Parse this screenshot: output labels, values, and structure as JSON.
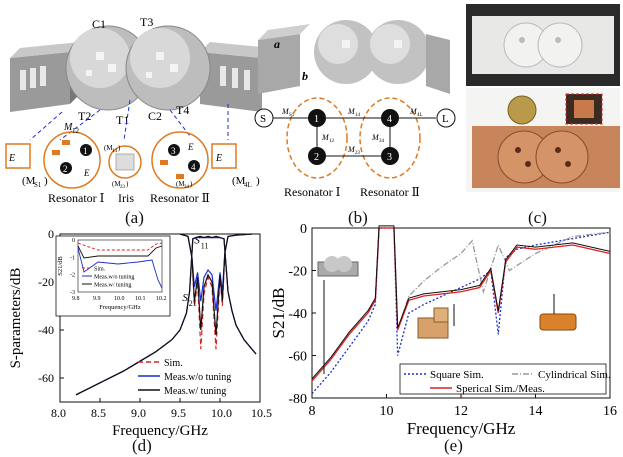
{
  "panel_a": {
    "labels": {
      "c1": "C1",
      "c2": "C2",
      "t1": "T1",
      "t2": "T2",
      "t3": "T3",
      "t4": "T4"
    },
    "m_s1": "(M",
    "m_s1_sub": "S1",
    "m_s1_close": ")",
    "m_12": "M",
    "m_12_sub": "12",
    "m_23": "(M",
    "m_23_sub": "23",
    "m_23_close": ")",
    "m_14": "(M",
    "m_14_sub": "14",
    "m_14_close": ")",
    "m_34": "(M",
    "m_34_sub": "34",
    "m_34_close": ")",
    "m_4l": "(M",
    "m_4l_sub": "4L",
    "m_4l_close": ")",
    "e": "E",
    "n1": "1",
    "n2": "2",
    "n3": "3",
    "n4": "4",
    "resonator1": "Resonator Ⅰ",
    "iris": "Iris",
    "resonator2": "Resonator Ⅱ",
    "caption": "(a)"
  },
  "panel_b": {
    "a": "a",
    "b": "b",
    "S": "S",
    "L": "L",
    "n1": "1",
    "n2": "2",
    "n3": "3",
    "n4": "4",
    "ms1": "M",
    "ms1_sub": "S1",
    "m14": "M",
    "m14_sub": "14",
    "m4l": "M",
    "m4l_sub": "4L",
    "m12": "M",
    "m12_sub": "12",
    "m34": "M",
    "m34_sub": "34",
    "m23": "M",
    "m23_sub": "23",
    "resonator1": "Resonator Ⅰ",
    "resonator2": "Resonator Ⅱ",
    "caption": "(b)"
  },
  "panel_c": {
    "caption": "(c)"
  },
  "panel_d": {
    "caption": "(d)",
    "colors": {
      "sim": "#e02020",
      "meas_wo": "#1a2fd0",
      "meas_w": "#111111"
    },
    "chart_data": {
      "type": "line",
      "xlabel": "Frequency/GHz",
      "ylabel": "S-parameters/dB",
      "xlim": [
        8.0,
        10.5
      ],
      "ylim": [
        -70,
        0
      ],
      "xticks": [
        "8.0",
        "8.5",
        "9.0",
        "9.5",
        "10.0",
        "10.5"
      ],
      "yticks": [
        "0",
        "-20",
        "-40",
        "-60"
      ],
      "annotations": [
        "S",
        "11",
        "S",
        "21"
      ],
      "legend": [
        "Sim.",
        "Meas.w/o tuning",
        "Meas.w/ tuning"
      ],
      "series": [
        {
          "name": "Sim.",
          "style": "dashed",
          "x": [
            8.2,
            8.5,
            8.8,
            9.0,
            9.2,
            9.4,
            9.5,
            9.58,
            9.62,
            9.66,
            9.7,
            9.75,
            9.8,
            9.85,
            9.9,
            9.95,
            10.0,
            10.05,
            10.1,
            10.15,
            10.2,
            10.3,
            10.45
          ],
          "y": [
            -67,
            -62,
            -57,
            -53,
            -49,
            -44,
            -40,
            -33,
            -24,
            -2,
            -1.5,
            -1,
            -1.5,
            -1,
            -1.5,
            -1,
            -1.5,
            -2,
            -24,
            -32,
            -38,
            -44,
            -50
          ]
        },
        {
          "name": "Meas.w/o tuning",
          "style": "solid",
          "x": [
            8.2,
            8.5,
            8.8,
            9.0,
            9.2,
            9.4,
            9.5,
            9.58,
            9.62,
            9.66,
            9.7,
            9.75,
            9.8,
            9.85,
            9.9,
            9.95,
            10.0,
            10.05,
            10.1,
            10.15,
            10.2,
            10.3,
            10.45
          ],
          "y": [
            -67,
            -62,
            -57,
            -53,
            -49,
            -44,
            -40,
            -33,
            -24,
            -2,
            -1.5,
            -1.5,
            -1.5,
            -1.5,
            -1.5,
            -1.5,
            -1.5,
            -2,
            -24,
            -32,
            -38,
            -44,
            -50
          ]
        },
        {
          "name": "Meas.w/ tuning",
          "style": "solid",
          "x": [
            8.2,
            8.5,
            8.8,
            9.0,
            9.2,
            9.4,
            9.5,
            9.58,
            9.62,
            9.66,
            9.7,
            9.75,
            9.8,
            9.85,
            9.9,
            9.95,
            10.0,
            10.05,
            10.1,
            10.15,
            10.2,
            10.3,
            10.45
          ],
          "y": [
            -67,
            -62,
            -57,
            -53,
            -49,
            -44,
            -40,
            -33,
            -24,
            -2,
            -1.5,
            -1,
            -1.5,
            -1,
            -1.5,
            -1,
            -1.5,
            -2,
            -24,
            -32,
            -38,
            -44,
            -50
          ]
        },
        {
          "name": "S11 Sim.",
          "style": "dashed",
          "x": [
            9.5,
            9.6,
            9.65,
            9.68,
            9.72,
            9.76,
            9.8,
            9.85,
            9.9,
            9.95,
            10.0,
            10.03,
            10.06,
            10.1,
            10.2,
            10.4
          ],
          "y": [
            0,
            -1,
            -10,
            -30,
            -20,
            -48,
            -25,
            -18,
            -22,
            -48,
            -18,
            -30,
            -8,
            -1,
            -0.5,
            0
          ]
        },
        {
          "name": "S11 Meas.w/o tuning",
          "style": "solid",
          "x": [
            9.5,
            9.6,
            9.65,
            9.68,
            9.72,
            9.76,
            9.8,
            9.85,
            9.9,
            9.95,
            10.0,
            10.03,
            10.06,
            10.1,
            10.2,
            10.4
          ],
          "y": [
            0,
            -1,
            -10,
            -22,
            -16,
            -28,
            -18,
            -15,
            -17,
            -32,
            -16,
            -24,
            -8,
            -1,
            -0.5,
            0
          ]
        },
        {
          "name": "S11 Meas.w/ tuning",
          "style": "solid",
          "x": [
            9.5,
            9.6,
            9.65,
            9.68,
            9.72,
            9.76,
            9.8,
            9.85,
            9.9,
            9.95,
            10.0,
            10.03,
            10.06,
            10.1,
            10.2,
            10.4
          ],
          "y": [
            0,
            -1,
            -10,
            -28,
            -18,
            -40,
            -22,
            -17,
            -20,
            -42,
            -17,
            -28,
            -8,
            -1,
            -0.5,
            0
          ]
        }
      ],
      "inset": {
        "xlabel": "Frequency/GHz",
        "ylabel": "S21/dB",
        "xticks": [
          "9.8",
          "9.9",
          "10.0",
          "10.1",
          "10.2"
        ],
        "yticks": [
          "0",
          "-1",
          "-2",
          "-3"
        ],
        "legend": [
          "Sim.",
          "Meas.w/o tuning",
          "Meas.w/ tuning"
        ]
      }
    }
  },
  "panel_e": {
    "caption": "(e)",
    "colors": {
      "square": "#1a2fd0",
      "cyl": "#999999",
      "sph_sim": "#e02020",
      "sph_meas": "#111111"
    },
    "chart_data": {
      "type": "line",
      "xlabel": "Frequency/GHz",
      "ylabel": "S21/dB",
      "xlim": [
        8,
        16
      ],
      "ylim": [
        -80,
        0
      ],
      "xticks": [
        "8",
        "10",
        "12",
        "14",
        "16"
      ],
      "yticks": [
        "0",
        "-20",
        "-40",
        "-60",
        "-80"
      ],
      "legend": [
        "Square Sim.",
        "Cylindrical Sim.",
        "Sperical Sim./Meas."
      ],
      "series": [
        {
          "name": "Square Sim.",
          "style": "dotted",
          "x": [
            8,
            8.5,
            9,
            9.5,
            9.7,
            9.8,
            10,
            10.2,
            10.3,
            10.6,
            11,
            11.5,
            12,
            12.5,
            12.8,
            13,
            13.2,
            13.5,
            14,
            15,
            16
          ],
          "y": [
            -78,
            -68,
            -56,
            -44,
            -36,
            0,
            0,
            0,
            -60,
            -40,
            -36,
            -32,
            -28,
            -24,
            -20,
            -50,
            -14,
            -10,
            -8,
            -5,
            -2
          ]
        },
        {
          "name": "Cylindrical Sim.",
          "style": "dashdot",
          "x": [
            8,
            8.5,
            9,
            9.5,
            9.7,
            9.8,
            10,
            10.2,
            10.3,
            10.6,
            11,
            11.5,
            12,
            12.3,
            12.6,
            13,
            13.3,
            14,
            15,
            16
          ],
          "y": [
            -72,
            -62,
            -50,
            -40,
            -34,
            0,
            0,
            0,
            -48,
            -32,
            -25,
            -18,
            -12,
            -6,
            -30,
            -8,
            -20,
            -12,
            -4,
            -2
          ]
        },
        {
          "name": "Sperical Sim./Meas.",
          "style": "solid",
          "x": [
            8,
            8.5,
            9,
            9.5,
            9.7,
            9.8,
            10,
            10.2,
            10.3,
            10.6,
            11,
            11.5,
            12,
            12.5,
            12.8,
            13,
            13.2,
            13.5,
            14,
            15,
            16
          ],
          "y": [
            -72,
            -62,
            -50,
            -40,
            -34,
            0,
            0,
            0,
            -48,
            -34,
            -32,
            -31,
            -30,
            -28,
            -20,
            -40,
            -16,
            -9,
            -10,
            -8,
            -12
          ]
        }
      ]
    }
  }
}
